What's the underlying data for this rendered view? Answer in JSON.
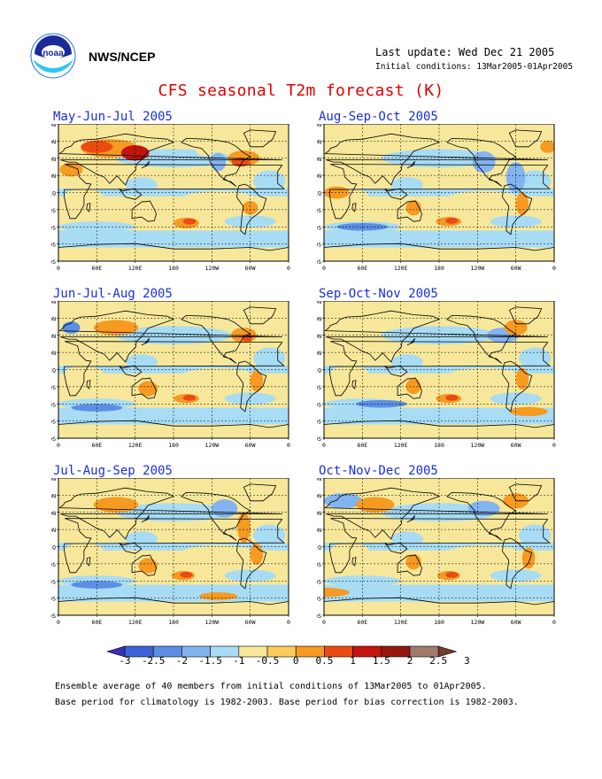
{
  "header": {
    "agency": "NWS/NCEP",
    "last_update": "Last update: Wed Dec 21 2005",
    "initial_conditions": "Initial conditions: 13Mar2005-01Apr2005",
    "title": "CFS seasonal T2m forecast (K)"
  },
  "logo": {
    "text": "noaa"
  },
  "panels": [
    {
      "title": "May-Jun-Jul 2005"
    },
    {
      "title": "Aug-Sep-Oct 2005"
    },
    {
      "title": "Jun-Jul-Aug 2005"
    },
    {
      "title": "Sep-Oct-Nov 2005"
    },
    {
      "title": "Jul-Aug-Sep 2005"
    },
    {
      "title": "Oct-Nov-Dec 2005"
    }
  ],
  "axes": {
    "lat_labels": [
      "80N",
      "60N",
      "40N",
      "20N",
      "EQ",
      "20S",
      "40S",
      "60S",
      "80S"
    ],
    "lon_labels": [
      "0",
      "60E",
      "120E",
      "180",
      "120W",
      "60W",
      "0"
    ]
  },
  "colorbar": {
    "labels": [
      "-3",
      "-2.5",
      "-2",
      "-1.5",
      "-1",
      "-0.5",
      "0",
      "0.5",
      "1",
      "1.5",
      "2",
      "2.5",
      "3"
    ],
    "colors": [
      "#3a2fb8",
      "#3b62d6",
      "#5b8fe6",
      "#82b4f0",
      "#a8dcf4",
      "#f6e79a",
      "#f9cb5a",
      "#f69a22",
      "#ea4b12",
      "#c4150f",
      "#96160e",
      "#a07a6a",
      "#6e3f2c"
    ]
  },
  "footer": {
    "line1": "Ensemble average of 40 members from initial conditions of 13Mar2005 to 01Apr2005.",
    "line2": "Base period for climatology is 1982-2003. Base period for bias correction is 1982-2003."
  }
}
